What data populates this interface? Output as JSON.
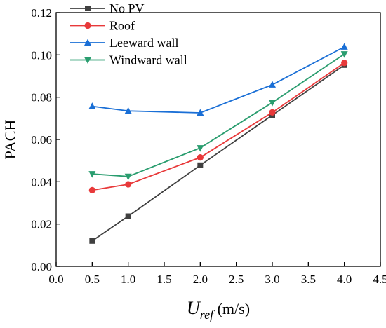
{
  "chart_data": {
    "type": "line",
    "title": "",
    "xlabel": {
      "main": "U",
      "sub": "ref",
      "unit": " (m/s)"
    },
    "ylabel": "PACH",
    "xlim": [
      0.0,
      4.5
    ],
    "ylim": [
      0.0,
      0.12
    ],
    "xticks": [
      0.0,
      0.5,
      1.0,
      1.5,
      2.0,
      2.5,
      3.0,
      3.5,
      4.0,
      4.5
    ],
    "xtick_labels": [
      "0.0",
      "0.5",
      "1.0",
      "1.5",
      "2.0",
      "2.5",
      "3.0",
      "3.5",
      "4.0",
      "4.5"
    ],
    "yticks": [
      0.0,
      0.02,
      0.04,
      0.06,
      0.08,
      0.1,
      0.12
    ],
    "ytick_labels": [
      "0.00",
      "0.02",
      "0.04",
      "0.06",
      "0.08",
      "0.10",
      "0.12"
    ],
    "grid": false,
    "legend_position": "top-left",
    "x": [
      0.5,
      1.0,
      2.0,
      3.0,
      4.0
    ],
    "series": [
      {
        "name": "No PV",
        "color": "#404040",
        "marker": "square",
        "values": [
          0.012,
          0.0237,
          0.0478,
          0.0715,
          0.0952
        ]
      },
      {
        "name": "Roof",
        "color": "#e8393a",
        "marker": "circle",
        "values": [
          0.036,
          0.0388,
          0.0515,
          0.0728,
          0.0962
        ]
      },
      {
        "name": "Leeward wall",
        "color": "#1a6fd6",
        "marker": "triangle-up",
        "values": [
          0.0757,
          0.0735,
          0.0726,
          0.0859,
          0.1038
        ]
      },
      {
        "name": "Windward wall",
        "color": "#2a9d6f",
        "marker": "triangle-down",
        "values": [
          0.0437,
          0.0425,
          0.056,
          0.0775,
          0.1004
        ]
      }
    ]
  }
}
